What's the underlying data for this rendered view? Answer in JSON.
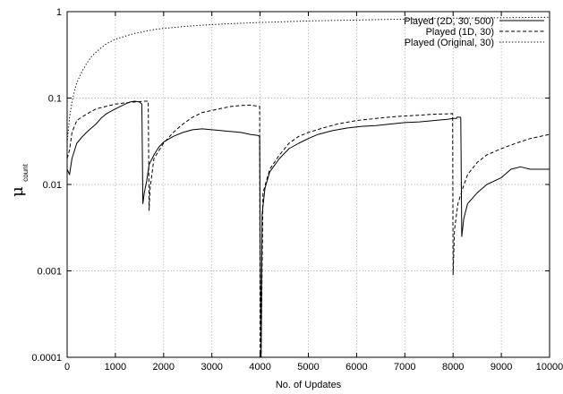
{
  "chart_data": {
    "type": "line",
    "title": "",
    "xlabel": "No. of Updates",
    "ylabel": "μ",
    "ylabel_sub": "count",
    "xlim": [
      0,
      10000
    ],
    "ylim": [
      0.0001,
      1
    ],
    "yscale": "log",
    "grid": true,
    "legend_position": "top-right",
    "x_ticks": [
      "0",
      "1000",
      "2000",
      "3000",
      "4000",
      "5000",
      "6000",
      "7000",
      "8000",
      "9000",
      "10000"
    ],
    "y_ticks": [
      "0.0001",
      "0.001",
      "0.01",
      "0.1",
      "1"
    ],
    "series": [
      {
        "name": "Played (2D, 30, 500)",
        "style": "solid",
        "color": "#000000",
        "points": [
          [
            0,
            0.015
          ],
          [
            50,
            0.013
          ],
          [
            100,
            0.02
          ],
          [
            200,
            0.03
          ],
          [
            300,
            0.035
          ],
          [
            400,
            0.04
          ],
          [
            500,
            0.045
          ],
          [
            600,
            0.05
          ],
          [
            700,
            0.058
          ],
          [
            800,
            0.065
          ],
          [
            900,
            0.07
          ],
          [
            1000,
            0.075
          ],
          [
            1100,
            0.08
          ],
          [
            1200,
            0.085
          ],
          [
            1300,
            0.09
          ],
          [
            1400,
            0.092
          ],
          [
            1500,
            0.09
          ],
          [
            1550,
            0.085
          ],
          [
            1570,
            0.006
          ],
          [
            1600,
            0.008
          ],
          [
            1650,
            0.011
          ],
          [
            1700,
            0.017
          ],
          [
            1800,
            0.022
          ],
          [
            1900,
            0.027
          ],
          [
            2000,
            0.031
          ],
          [
            2200,
            0.036
          ],
          [
            2400,
            0.04
          ],
          [
            2600,
            0.043
          ],
          [
            2800,
            0.044
          ],
          [
            3000,
            0.043
          ],
          [
            3200,
            0.042
          ],
          [
            3400,
            0.041
          ],
          [
            3600,
            0.04
          ],
          [
            3800,
            0.038
          ],
          [
            3950,
            0.037
          ],
          [
            3990,
            0.036
          ],
          [
            4000,
            0.0028
          ],
          [
            4020,
            0.0001
          ],
          [
            4040,
            0.0045
          ],
          [
            4100,
            0.009
          ],
          [
            4200,
            0.014
          ],
          [
            4400,
            0.02
          ],
          [
            4600,
            0.026
          ],
          [
            4800,
            0.03
          ],
          [
            5000,
            0.034
          ],
          [
            5200,
            0.038
          ],
          [
            5500,
            0.042
          ],
          [
            5800,
            0.045
          ],
          [
            6100,
            0.047
          ],
          [
            6400,
            0.048
          ],
          [
            6700,
            0.05
          ],
          [
            7000,
            0.052
          ],
          [
            7300,
            0.053
          ],
          [
            7600,
            0.055
          ],
          [
            7900,
            0.057
          ],
          [
            8000,
            0.058
          ],
          [
            8020,
            0.058
          ],
          [
            8070,
            0.058
          ],
          [
            8080,
            0.06
          ],
          [
            8100,
            0.06
          ],
          [
            8150,
            0.06
          ],
          [
            8160,
            0.059
          ],
          [
            8180,
            0.0025
          ],
          [
            8220,
            0.004
          ],
          [
            8300,
            0.006
          ],
          [
            8500,
            0.008
          ],
          [
            8700,
            0.01
          ],
          [
            9000,
            0.012
          ],
          [
            9200,
            0.015
          ],
          [
            9400,
            0.016
          ],
          [
            9600,
            0.015
          ],
          [
            9800,
            0.015
          ],
          [
            10000,
            0.015
          ]
        ]
      },
      {
        "name": "Played (1D, 30)",
        "style": "dashed",
        "color": "#000000",
        "points": [
          [
            0,
            0.02
          ],
          [
            50,
            0.025
          ],
          [
            100,
            0.04
          ],
          [
            200,
            0.055
          ],
          [
            300,
            0.06
          ],
          [
            400,
            0.065
          ],
          [
            500,
            0.07
          ],
          [
            600,
            0.075
          ],
          [
            800,
            0.08
          ],
          [
            1000,
            0.085
          ],
          [
            1200,
            0.088
          ],
          [
            1400,
            0.09
          ],
          [
            1600,
            0.092
          ],
          [
            1680,
            0.092
          ],
          [
            1700,
            0.005
          ],
          [
            1720,
            0.009
          ],
          [
            1800,
            0.02
          ],
          [
            2000,
            0.03
          ],
          [
            2200,
            0.04
          ],
          [
            2400,
            0.05
          ],
          [
            2600,
            0.06
          ],
          [
            2800,
            0.068
          ],
          [
            3000,
            0.072
          ],
          [
            3200,
            0.076
          ],
          [
            3400,
            0.08
          ],
          [
            3600,
            0.082
          ],
          [
            3800,
            0.083
          ],
          [
            3990,
            0.08
          ],
          [
            4000,
            0.0001
          ],
          [
            4020,
            0.0001
          ],
          [
            4060,
            0.008
          ],
          [
            4200,
            0.015
          ],
          [
            4400,
            0.022
          ],
          [
            4600,
            0.03
          ],
          [
            4800,
            0.036
          ],
          [
            5000,
            0.04
          ],
          [
            5300,
            0.045
          ],
          [
            5600,
            0.05
          ],
          [
            6000,
            0.055
          ],
          [
            6400,
            0.058
          ],
          [
            6800,
            0.061
          ],
          [
            7200,
            0.063
          ],
          [
            7600,
            0.065
          ],
          [
            7990,
            0.066
          ],
          [
            8000,
            0.0009
          ],
          [
            8030,
            0.003
          ],
          [
            8100,
            0.006
          ],
          [
            8200,
            0.009
          ],
          [
            8300,
            0.013
          ],
          [
            8500,
            0.018
          ],
          [
            8700,
            0.022
          ],
          [
            9000,
            0.026
          ],
          [
            9300,
            0.03
          ],
          [
            9600,
            0.034
          ],
          [
            10000,
            0.038
          ]
        ]
      },
      {
        "name": "Played (Original, 30)",
        "style": "dotted",
        "color": "#000000",
        "points": [
          [
            0,
            0.03
          ],
          [
            50,
            0.06
          ],
          [
            100,
            0.09
          ],
          [
            150,
            0.12
          ],
          [
            200,
            0.15
          ],
          [
            300,
            0.2
          ],
          [
            400,
            0.25
          ],
          [
            500,
            0.3
          ],
          [
            600,
            0.34
          ],
          [
            700,
            0.38
          ],
          [
            800,
            0.42
          ],
          [
            900,
            0.45
          ],
          [
            1000,
            0.48
          ],
          [
            1200,
            0.52
          ],
          [
            1400,
            0.56
          ],
          [
            1600,
            0.59
          ],
          [
            1800,
            0.62
          ],
          [
            2000,
            0.64
          ],
          [
            2500,
            0.68
          ],
          [
            3000,
            0.71
          ],
          [
            3500,
            0.73
          ],
          [
            4000,
            0.75
          ],
          [
            5000,
            0.78
          ],
          [
            6000,
            0.8
          ],
          [
            7000,
            0.82
          ],
          [
            8000,
            0.84
          ],
          [
            9000,
            0.85
          ],
          [
            10000,
            0.86
          ]
        ]
      }
    ]
  }
}
